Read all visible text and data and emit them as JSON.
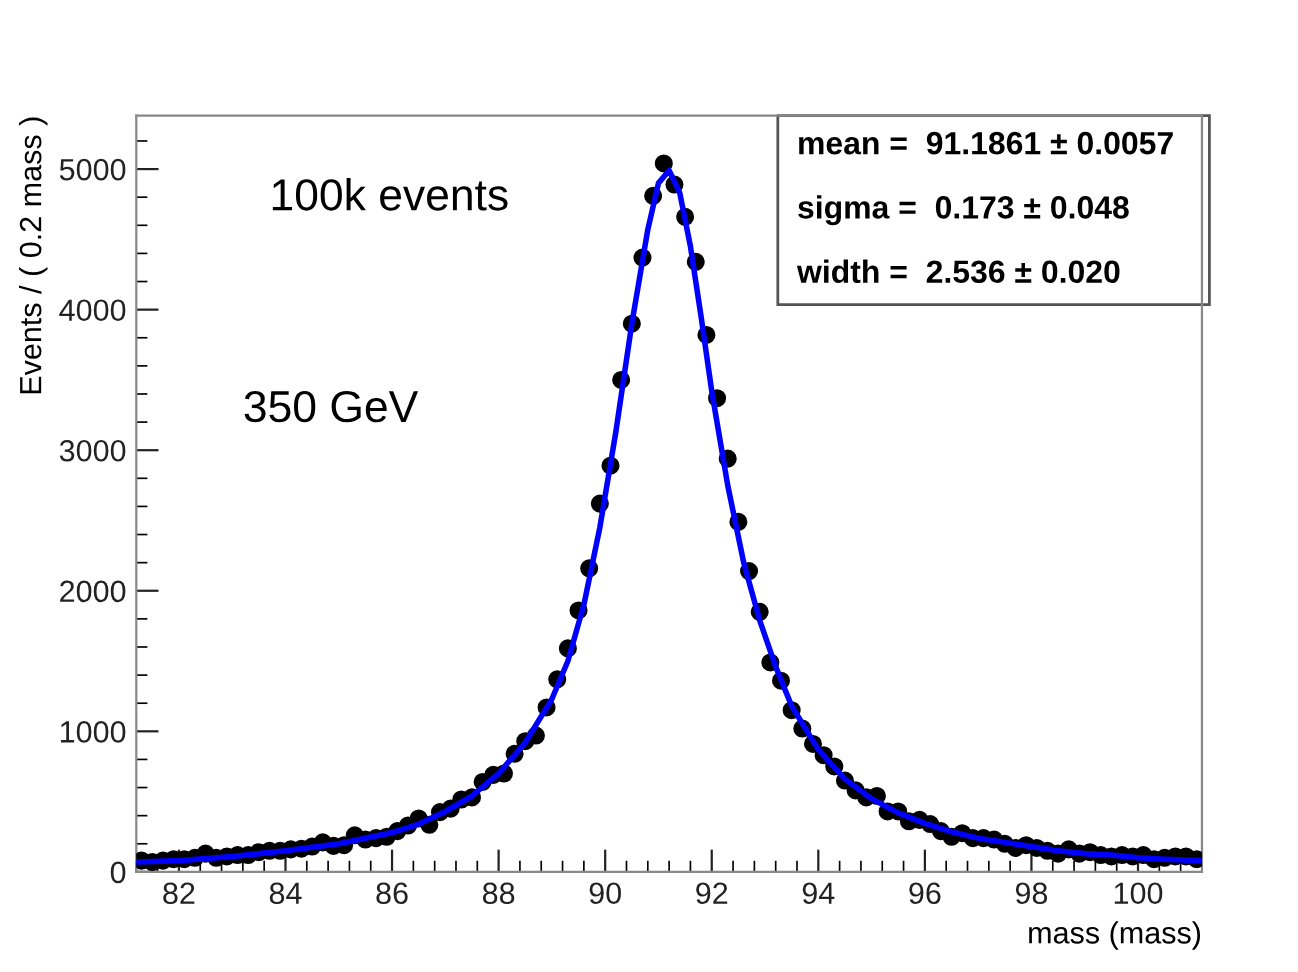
{
  "chart_data": {
    "type": "scatter",
    "xlabel": "mass (mass)",
    "ylabel": "Events / ( 0.2 mass )",
    "annotations": [
      "100k events",
      "350 GeV",
      "mean =  91.1861 ± 0.0057",
      "sigma =  0.173 ± 0.048",
      "width =  2.536 ± 0.020"
    ],
    "xlim": [
      81.2,
      101.2
    ],
    "ylim": [
      0,
      5380
    ],
    "xticks": [
      82,
      84,
      86,
      88,
      90,
      92,
      94,
      96,
      98,
      100
    ],
    "yticks": [
      0,
      1000,
      2000,
      3000,
      4000,
      5000
    ],
    "grid": false,
    "marker": "circle",
    "series": [
      {
        "color": "#000000",
        "x": [
          81.3,
          81.5,
          81.7,
          81.9,
          82.1,
          82.3,
          82.5,
          82.7,
          82.9,
          83.1,
          83.3,
          83.5,
          83.7,
          83.9,
          84.1,
          84.3,
          84.5,
          84.7,
          84.9,
          85.1,
          85.3,
          85.5,
          85.7,
          85.9,
          86.1,
          86.3,
          86.5,
          86.7,
          86.9,
          87.1,
          87.3,
          87.5,
          87.7,
          87.9,
          88.1,
          88.3,
          88.5,
          88.7,
          88.9,
          89.1,
          89.3,
          89.5,
          89.7,
          89.9,
          90.1,
          90.3,
          90.5,
          90.7,
          90.9,
          91.1,
          91.3,
          91.5,
          91.7,
          91.9,
          92.1,
          92.3,
          92.5,
          92.7,
          92.9,
          93.1,
          93.3,
          93.5,
          93.7,
          93.9,
          94.1,
          94.3,
          94.5,
          94.7,
          94.9,
          95.1,
          95.3,
          95.5,
          95.7,
          95.9,
          96.1,
          96.3,
          96.5,
          96.7,
          96.9,
          97.1,
          97.3,
          97.5,
          97.7,
          97.9,
          98.1,
          98.3,
          98.5,
          98.7,
          98.9,
          99.1,
          99.3,
          99.5,
          99.7,
          99.9,
          100.1,
          100.3,
          100.5,
          100.7,
          100.9,
          101.1
        ],
        "values": [
          80,
          70,
          80,
          90,
          90,
          100,
          130,
          100,
          110,
          120,
          120,
          140,
          150,
          150,
          160,
          165,
          180,
          210,
          185,
          190,
          260,
          230,
          240,
          250,
          290,
          330,
          380,
          335,
          425,
          450,
          515,
          530,
          640,
          690,
          700,
          840,
          930,
          970,
          1170,
          1370,
          1590,
          1860,
          2160,
          2620,
          2890,
          3500,
          3900,
          4370,
          4810,
          5040,
          4890,
          4660,
          4340,
          3820,
          3370,
          2940,
          2490,
          2140,
          1850,
          1490,
          1360,
          1150,
          1020,
          910,
          830,
          750,
          650,
          580,
          530,
          540,
          430,
          430,
          360,
          370,
          340,
          290,
          250,
          275,
          240,
          240,
          230,
          200,
          170,
          190,
          170,
          150,
          130,
          160,
          130,
          140,
          120,
          110,
          120,
          110,
          120,
          90,
          100,
          110,
          110,
          90
        ]
      },
      {
        "type": "line",
        "color": "#0000ff",
        "marker": "none",
        "x": [
          81.2,
          82,
          83,
          84,
          85,
          86,
          86.5,
          87,
          87.5,
          88,
          88.5,
          89,
          89.3,
          89.6,
          89.9,
          90.2,
          90.5,
          90.8,
          91.0,
          91.2,
          91.4,
          91.6,
          91.8,
          92.0,
          92.3,
          92.6,
          92.9,
          93.2,
          93.5,
          94.0,
          94.5,
          95.0,
          95.5,
          96.0,
          96.5,
          97.0,
          97.5,
          98.0,
          98.5,
          99.0,
          99.5,
          100.0,
          100.5,
          101.2
        ],
        "values": [
          70,
          80,
          110,
          150,
          200,
          280,
          340,
          430,
          540,
          700,
          920,
          1230,
          1500,
          1900,
          2450,
          3130,
          3900,
          4570,
          4900,
          4990,
          4830,
          4450,
          3950,
          3420,
          2750,
          2200,
          1790,
          1460,
          1180,
          870,
          660,
          520,
          420,
          345,
          285,
          240,
          210,
          180,
          150,
          130,
          120,
          100,
          90,
          80
        ]
      }
    ]
  }
}
